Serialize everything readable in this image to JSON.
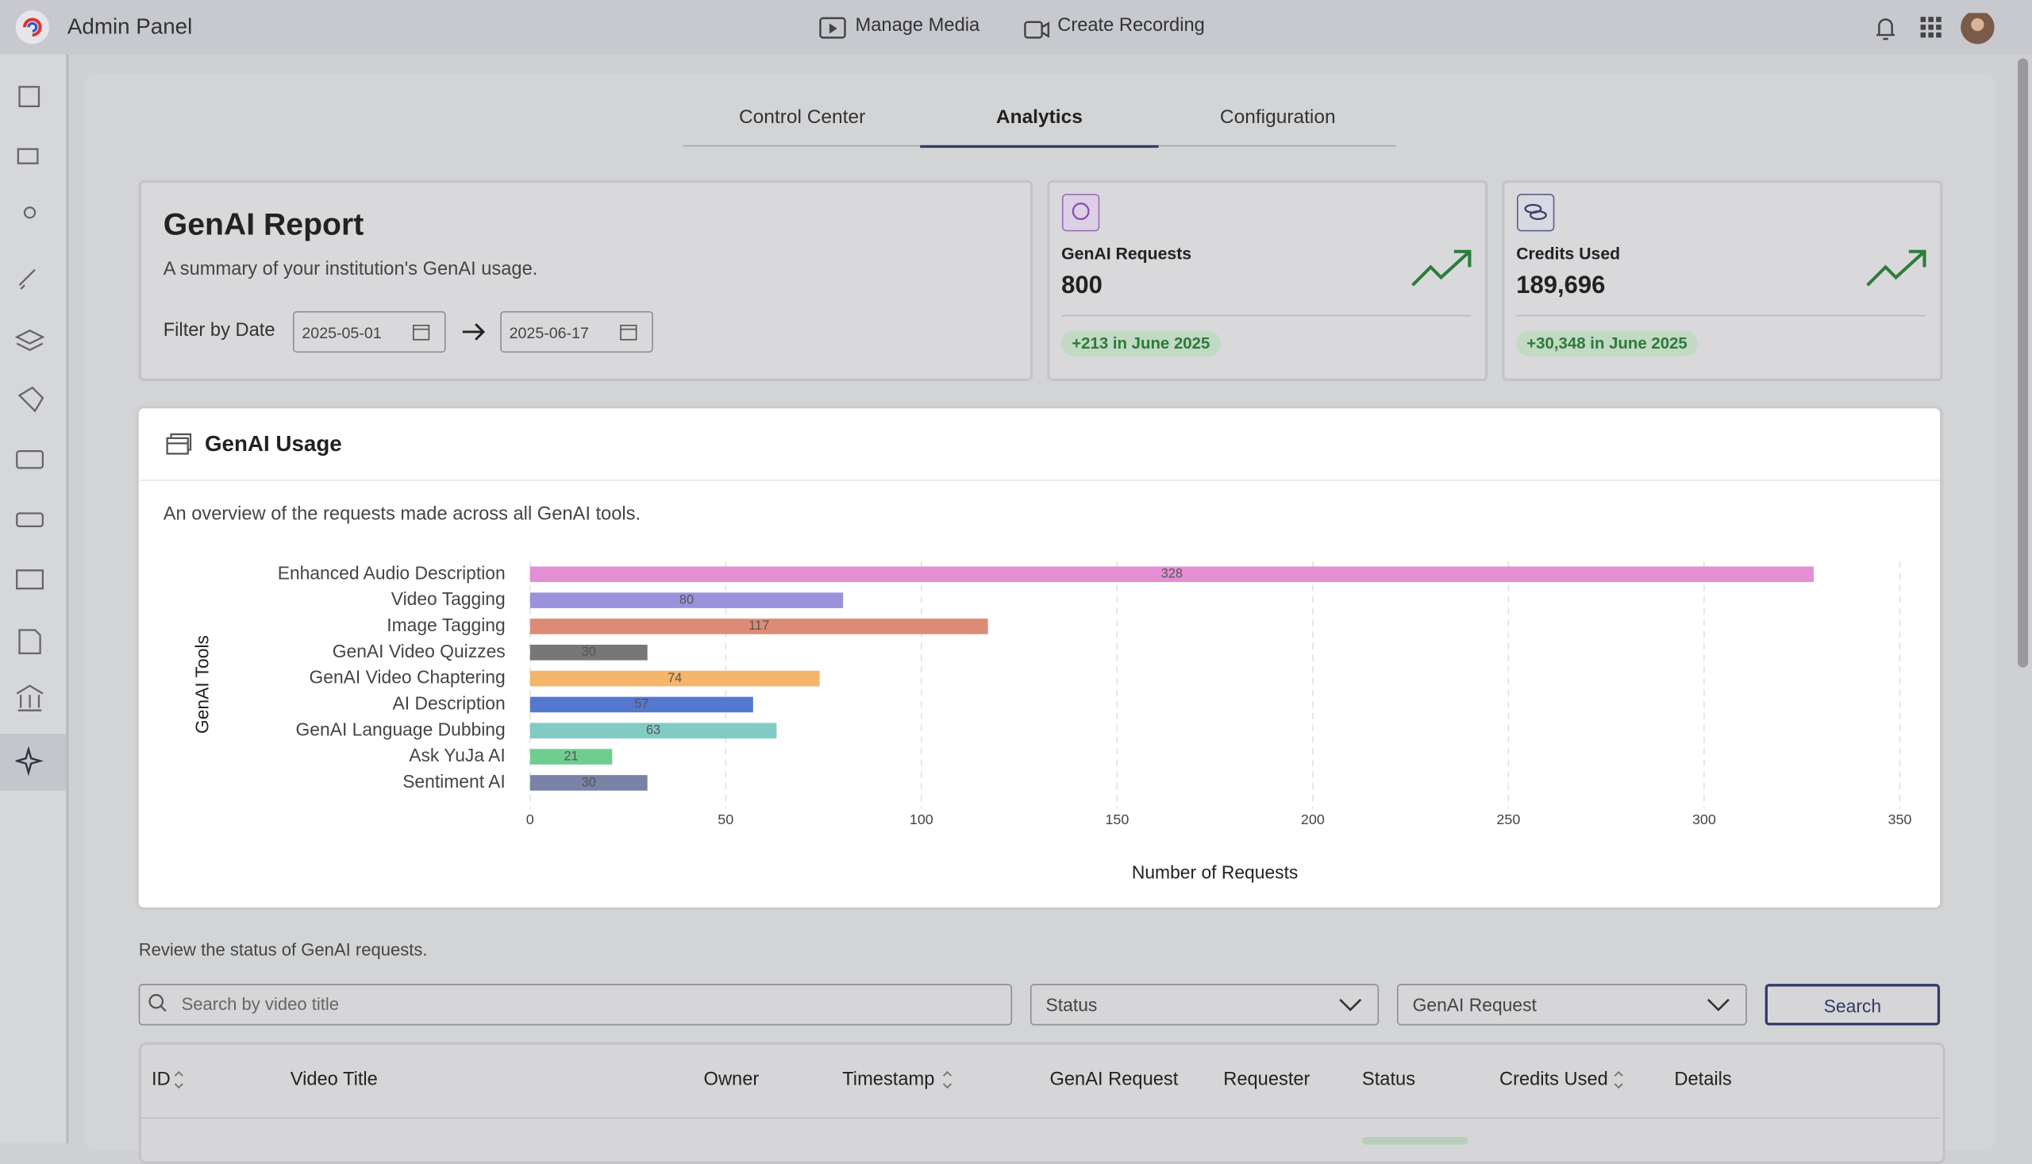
{
  "header": {
    "app_title": "Admin Panel",
    "nav": [
      "Manage Media",
      "Create Recording"
    ]
  },
  "tabs": [
    "Control Center",
    "Analytics",
    "Configuration"
  ],
  "report": {
    "title": "GenAI Report",
    "subtitle": "A summary of your institution's GenAI usage.",
    "filter_label": "Filter by Date",
    "start_date": "2025-05-01",
    "end_date": "2025-06-17"
  },
  "stats": [
    {
      "label": "GenAI Requests",
      "value": "800",
      "change": "+213 in June 2025"
    },
    {
      "label": "Credits Used",
      "value": "189,696",
      "change": "+30,348 in June 2025"
    }
  ],
  "usage": {
    "title": "GenAI Usage",
    "description": "An overview of the requests made across all GenAI tools."
  },
  "chart_data": {
    "type": "bar",
    "orientation": "horizontal",
    "categories": [
      "Enhanced Audio Description",
      "Video Tagging",
      "Image Tagging",
      "GenAI Video Quizzes",
      "GenAI Video Chaptering",
      "AI Description",
      "GenAI Language Dubbing",
      "Ask YuJa AI",
      "Sentiment AI"
    ],
    "values": [
      328,
      80,
      117,
      30,
      74,
      57,
      63,
      21,
      30
    ],
    "colors": [
      "#e48fd4",
      "#9a92dc",
      "#dc8c76",
      "#777777",
      "#f5b56a",
      "#5577d0",
      "#82cbc4",
      "#6fce8f",
      "#7a82a8"
    ],
    "xlim": [
      0,
      350
    ],
    "xticks": [
      0,
      50,
      100,
      150,
      200,
      250,
      300,
      350
    ],
    "grid": true,
    "x_label": "Number of Requests",
    "y_label": "GenAI Tools"
  },
  "requests": {
    "description": "Review the status of GenAI requests.",
    "search_placeholder": "Search by video title",
    "filters": [
      "Status",
      "GenAI Request"
    ],
    "search_button": "Search",
    "columns": [
      "ID",
      "Video Title",
      "Owner",
      "Timestamp",
      "GenAI Request",
      "Requester",
      "Status",
      "Credits Used",
      "Details"
    ]
  }
}
